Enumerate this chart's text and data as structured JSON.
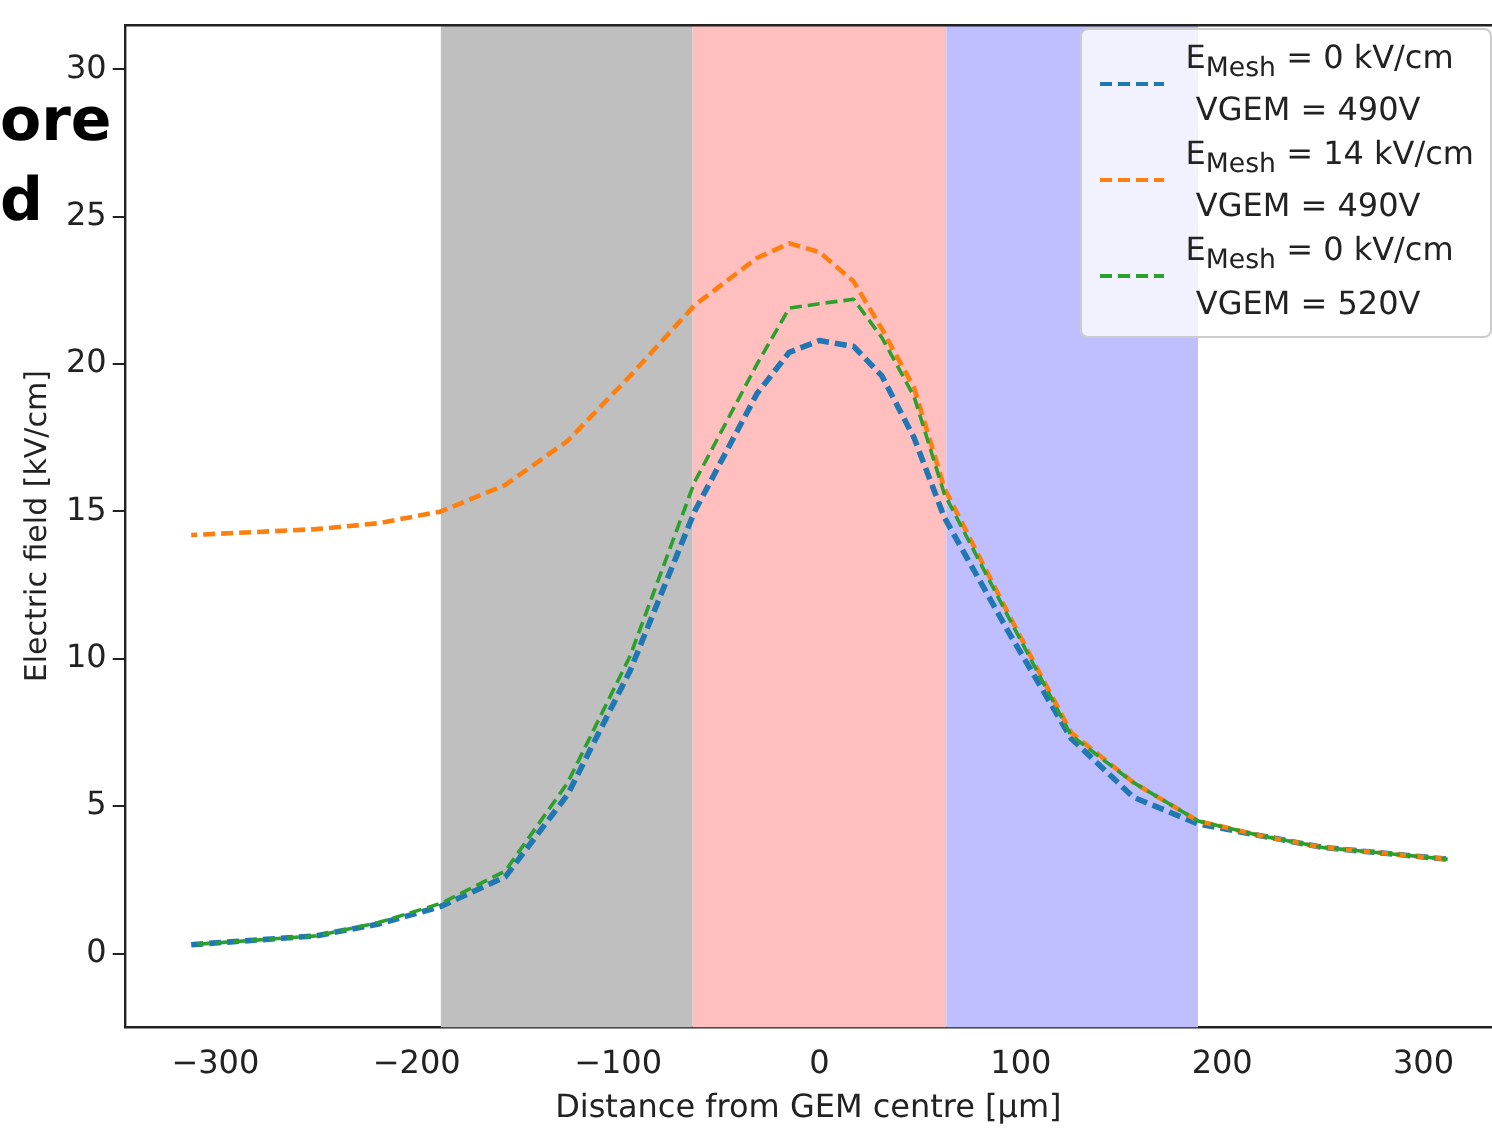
{
  "chart_data": {
    "type": "line",
    "xlabel": "Distance from GEM centre [μm]",
    "ylabel": "Electric field [kV/cm]",
    "x": [
      -312,
      -281,
      -250,
      -219,
      -188,
      -156,
      -125,
      -94,
      -62,
      -31,
      -15,
      0,
      17,
      31,
      47,
      62,
      94,
      125,
      156,
      188,
      219,
      250,
      281,
      312
    ],
    "series": [
      {
        "name": "E$_{Mesh}$ = 0 kV/cm\n VGEM = 490V",
        "color": "#1f77b4",
        "values": [
          0.3,
          0.45,
          0.6,
          1.0,
          1.6,
          2.6,
          5.4,
          9.6,
          15.0,
          19.0,
          20.4,
          20.8,
          20.6,
          19.6,
          17.5,
          14.8,
          10.9,
          7.3,
          5.3,
          4.4,
          4.0,
          3.6,
          3.4,
          3.2
        ]
      },
      {
        "name": "E$_{Mesh}$ = 14 kV/cm\n VGEM = 490V",
        "color": "#ff7f0e",
        "values": [
          14.2,
          14.3,
          14.4,
          14.6,
          15.0,
          15.9,
          17.4,
          19.6,
          22.0,
          23.6,
          24.1,
          23.8,
          22.8,
          21.2,
          19.2,
          15.8,
          11.5,
          7.5,
          5.8,
          4.5,
          4.0,
          3.6,
          3.4,
          3.2
        ]
      },
      {
        "name": "E$_{Mesh}$ = 0 kV/cm\n VGEM = 520V",
        "color": "#2ca02c",
        "values": [
          0.3,
          0.45,
          0.6,
          1.05,
          1.7,
          2.8,
          5.8,
          10.1,
          16.0,
          20.0,
          21.9,
          22.05,
          22.2,
          20.9,
          18.9,
          15.6,
          11.4,
          7.4,
          5.8,
          4.5,
          4.0,
          3.6,
          3.4,
          3.2
        ]
      }
    ],
    "bands": [
      {
        "axis": "x",
        "from": -188,
        "to": -63,
        "color": "#bfbfbf"
      },
      {
        "axis": "x",
        "from": -63,
        "to": 63,
        "color": "#ffbfbf"
      },
      {
        "axis": "x",
        "from": 63,
        "to": 188,
        "color": "#bfbfff"
      }
    ],
    "annotations": [
      "ore",
      "d"
    ],
    "xlim": [
      -345,
      334
    ],
    "xticks": [
      -300,
      -200,
      -100,
      0,
      100,
      200,
      300
    ],
    "ylim": [
      -2.5,
      31.5
    ],
    "yticks": [
      0,
      5,
      10,
      15,
      20,
      25,
      30
    ],
    "grid": false,
    "legend": "top right",
    "marker": "none",
    "line_style": "dashed"
  }
}
